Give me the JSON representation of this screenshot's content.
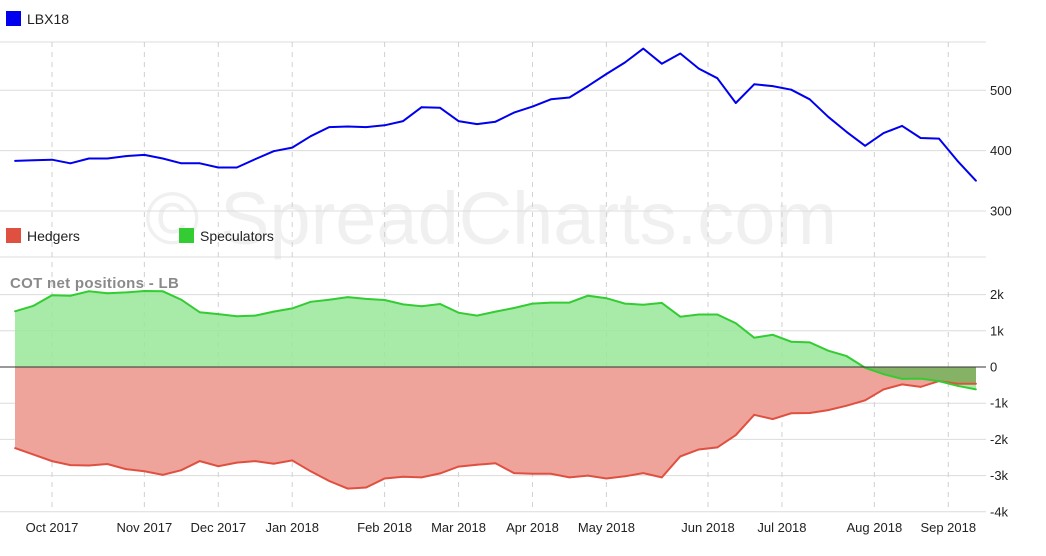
{
  "watermark": "© SpreadCharts.com",
  "chart_data": [
    {
      "type": "line",
      "legend": [
        {
          "name": "LBX18",
          "color": "#0000ee"
        }
      ],
      "ylim": [
        300,
        580
      ],
      "yticks": [
        300,
        400,
        500
      ],
      "ytick_labels": [
        "300",
        "400",
        "500"
      ],
      "series": [
        {
          "name": "LBX18",
          "color": "#0000ee",
          "values": [
            383,
            384,
            385,
            379,
            387,
            387,
            391,
            393,
            387,
            379,
            379,
            372,
            372,
            386,
            399,
            405,
            424,
            439,
            440,
            439,
            442,
            449,
            472,
            471,
            449,
            444,
            448,
            463,
            473,
            485,
            488,
            507,
            527,
            546,
            569,
            544,
            561,
            536,
            520,
            479,
            510,
            507,
            501,
            485,
            456,
            431,
            408,
            429,
            441,
            421,
            420,
            383,
            350
          ]
        }
      ]
    },
    {
      "type": "area",
      "title": "COT net positions - LB",
      "legend": [
        {
          "name": "Hedgers",
          "color": "#e05040"
        },
        {
          "name": "Speculators",
          "color": "#33cc33"
        }
      ],
      "ylim": [
        -4000,
        2500
      ],
      "yticks": [
        -4000,
        -3000,
        -2000,
        -1000,
        0,
        1000,
        2000
      ],
      "ytick_labels": [
        "-4k",
        "-3k",
        "-2k",
        "-1k",
        "0",
        "1k",
        "2k"
      ],
      "series": [
        {
          "name": "Hedgers",
          "color": "#e05040",
          "fill": "#eea39b",
          "values": [
            -2240,
            -2420,
            -2600,
            -2710,
            -2720,
            -2680,
            -2820,
            -2880,
            -2980,
            -2850,
            -2600,
            -2740,
            -2640,
            -2600,
            -2670,
            -2580,
            -2880,
            -3150,
            -3360,
            -3330,
            -3080,
            -3030,
            -3050,
            -2940,
            -2750,
            -2700,
            -2660,
            -2930,
            -2950,
            -2950,
            -3050,
            -3000,
            -3080,
            -3020,
            -2930,
            -3050,
            -2470,
            -2280,
            -2220,
            -1880,
            -1320,
            -1440,
            -1280,
            -1270,
            -1190,
            -1070,
            -920,
            -620,
            -480,
            -550,
            -390,
            -460,
            -460
          ]
        },
        {
          "name": "Speculators",
          "color": "#33cc33",
          "fill": "#99e699",
          "values": [
            1540,
            1690,
            1980,
            1970,
            2090,
            2040,
            2060,
            2100,
            2090,
            1860,
            1510,
            1460,
            1400,
            1420,
            1530,
            1620,
            1800,
            1860,
            1930,
            1880,
            1850,
            1730,
            1680,
            1740,
            1500,
            1420,
            1530,
            1630,
            1750,
            1780,
            1780,
            1970,
            1900,
            1750,
            1720,
            1770,
            1390,
            1450,
            1450,
            1210,
            810,
            890,
            700,
            680,
            450,
            300,
            -20,
            -200,
            -330,
            -320,
            -390,
            -520,
            -620
          ]
        }
      ]
    }
  ],
  "x_axis": {
    "labels": [
      "Oct 2017",
      "Nov 2017",
      "Dec 2017",
      "Jan 2018",
      "Feb 2018",
      "Mar 2018",
      "Apr 2018",
      "May 2018",
      "Jun 2018",
      "Jul 2018",
      "Aug 2018",
      "Sep 2018"
    ],
    "label_index": [
      2.0,
      7.0,
      11.0,
      15.0,
      20.0,
      24.0,
      28.0,
      32.0,
      37.5,
      41.5,
      46.5,
      50.5
    ]
  }
}
